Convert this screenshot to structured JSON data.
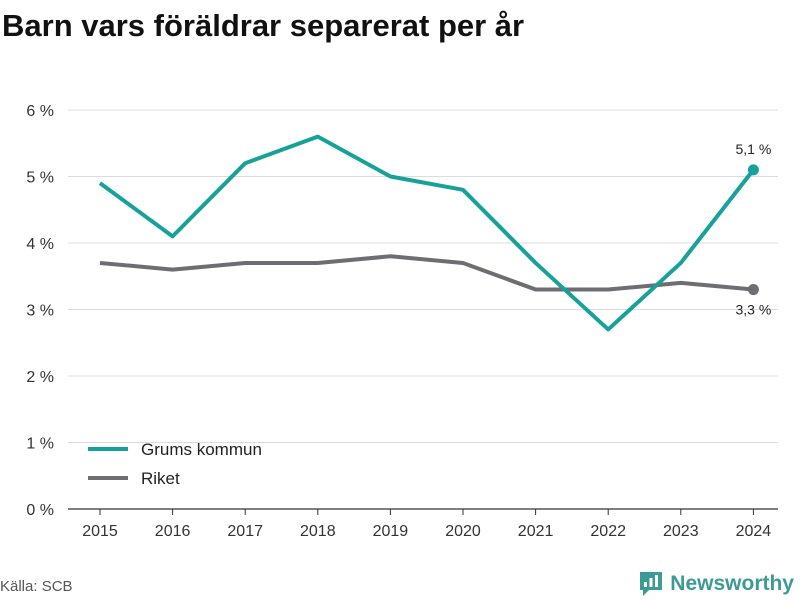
{
  "title": "Barn vars föräldrar separerat per år",
  "source": "Källa: SCB",
  "brand": {
    "name": "Newsworthy",
    "icon": "newsworthy-logo-icon",
    "color": "#3d9b97"
  },
  "chart_data": {
    "type": "line",
    "title": "Barn vars föräldrar separerat per år",
    "x": [
      "2015",
      "2016",
      "2017",
      "2018",
      "2019",
      "2020",
      "2021",
      "2022",
      "2023",
      "2024"
    ],
    "ylim": [
      0,
      6
    ],
    "yticks": [
      0,
      1,
      2,
      3,
      4,
      5,
      6
    ],
    "ytick_labels": [
      "0 %",
      "1 %",
      "2 %",
      "3 %",
      "4 %",
      "5 %",
      "6 %"
    ],
    "grid": true,
    "legend_position": "bottom-left",
    "series": [
      {
        "name": "Grums kommun",
        "color": "#16a29a",
        "values": [
          4.9,
          4.1,
          5.2,
          5.6,
          5.0,
          4.8,
          3.7,
          2.7,
          3.7,
          5.1
        ],
        "end_label": "5,1 %"
      },
      {
        "name": "Riket",
        "color": "#6e6d73",
        "values": [
          3.7,
          3.6,
          3.7,
          3.7,
          3.8,
          3.7,
          3.3,
          3.3,
          3.4,
          3.3
        ],
        "end_label": "3,3 %"
      }
    ]
  }
}
